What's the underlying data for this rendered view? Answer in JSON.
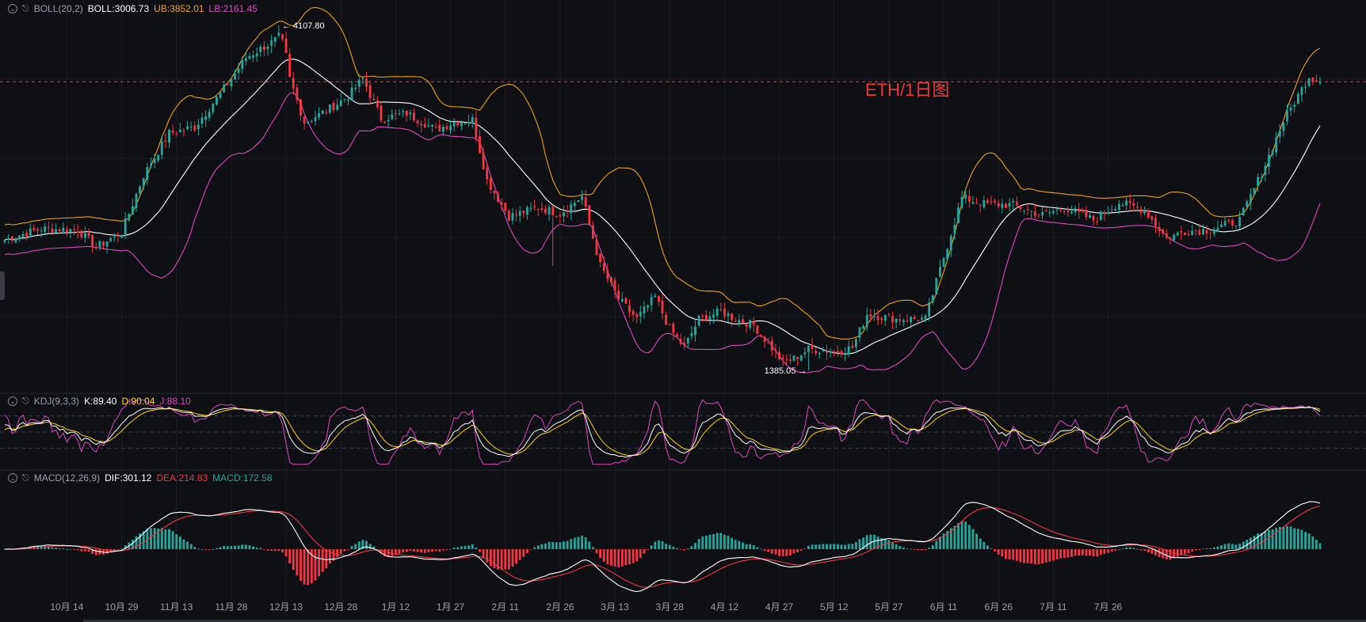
{
  "legend": {
    "boll": {
      "indicator": "BOLL(20,2)",
      "mid": "BOLL:3006.73",
      "ub": "UB:3852.01",
      "lb": "LB:2161.45"
    },
    "kdj": {
      "indicator": "KDJ(9,3,3)",
      "k": "K:89.40",
      "d": "D:90.04",
      "j": "J:88.10"
    },
    "macd": {
      "indicator": "MACD(12,26,9)",
      "dif": "DIF:301.12",
      "dea": "DEA:214.83",
      "macd": "MACD:172.58"
    }
  },
  "watermark": "ETH/1日图",
  "annotations": {
    "high": "4107.80",
    "low": "1385.05"
  },
  "icons": {
    "collapse": "chevron-down-icon",
    "alert": "bell-icon"
  },
  "colors": {
    "up": "#26a69a",
    "down": "#f23645",
    "mid": "#ffffff",
    "ub": "#e8a22a",
    "lb": "#d94ac0",
    "k": "#ffffff",
    "d": "#ffd21f",
    "j": "#d94ac0",
    "dif": "#ffffff",
    "dea": "#f23645"
  },
  "chart_data": {
    "type": "line",
    "x": [
      "10月 14",
      "10月 29",
      "11月 13",
      "11月 28",
      "12月 13",
      "12月 28",
      "1月 12",
      "1月 27",
      "2月 11",
      "2月 26",
      "3月 13",
      "3月 28",
      "4月 12",
      "4月 27",
      "5月 12",
      "5月 27",
      "6月 11",
      "6月 26",
      "7月 11",
      "7月 26"
    ],
    "price_anchor": {
      "max": 4107.8,
      "min": 1385.05,
      "last_ub": 3852.01,
      "last_mid": 3006.73,
      "last_lb": 2161.45
    },
    "close_keypoints": [
      [
        0,
        2440
      ],
      [
        10,
        2530
      ],
      [
        20,
        2520
      ],
      [
        25,
        2380
      ],
      [
        32,
        2500
      ],
      [
        38,
        2960
      ],
      [
        45,
        3300
      ],
      [
        52,
        3350
      ],
      [
        60,
        3660
      ],
      [
        66,
        3910
      ],
      [
        71,
        4000
      ],
      [
        74,
        4050
      ],
      [
        76,
        4107.8
      ],
      [
        78,
        3740
      ],
      [
        82,
        3390
      ],
      [
        88,
        3480
      ],
      [
        94,
        3600
      ],
      [
        98,
        3740
      ],
      [
        103,
        3420
      ],
      [
        110,
        3460
      ],
      [
        118,
        3330
      ],
      [
        123,
        3390
      ],
      [
        128,
        3410
      ],
      [
        132,
        2920
      ],
      [
        138,
        2630
      ],
      [
        146,
        2700
      ],
      [
        152,
        2650
      ],
      [
        158,
        2790
      ],
      [
        163,
        2230
      ],
      [
        168,
        1960
      ],
      [
        173,
        1800
      ],
      [
        178,
        1980
      ],
      [
        182,
        1720
      ],
      [
        186,
        1570
      ],
      [
        190,
        1800
      ],
      [
        196,
        1860
      ],
      [
        200,
        1800
      ],
      [
        205,
        1750
      ],
      [
        209,
        1600
      ],
      [
        213,
        1450
      ],
      [
        216,
        1480
      ],
      [
        220,
        1555
      ],
      [
        228,
        1540
      ],
      [
        232,
        1570
      ],
      [
        236,
        1840
      ],
      [
        244,
        1800
      ],
      [
        252,
        1800
      ],
      [
        256,
        2200
      ],
      [
        262,
        2780
      ],
      [
        268,
        2730
      ],
      [
        276,
        2720
      ],
      [
        284,
        2640
      ],
      [
        290,
        2700
      ],
      [
        298,
        2600
      ],
      [
        305,
        2740
      ],
      [
        312,
        2680
      ],
      [
        318,
        2450
      ],
      [
        323,
        2510
      ],
      [
        330,
        2520
      ],
      [
        338,
        2600
      ],
      [
        344,
        2980
      ],
      [
        350,
        3400
      ],
      [
        357,
        3760
      ],
      [
        360,
        3710
      ]
    ],
    "series": [
      {
        "name": "BOLL"
      },
      {
        "name": "UB"
      },
      {
        "name": "LB"
      },
      {
        "name": "K"
      },
      {
        "name": "D"
      },
      {
        "name": "J"
      },
      {
        "name": "DIF"
      },
      {
        "name": "DEA"
      },
      {
        "name": "MACD"
      }
    ]
  }
}
